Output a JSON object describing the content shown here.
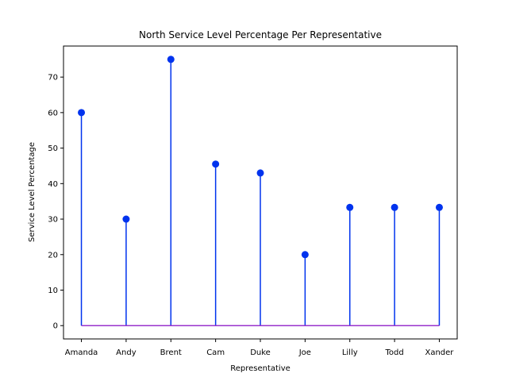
{
  "chart_data": {
    "type": "stem",
    "title": "North Service Level Percentage Per Representative",
    "xlabel": "Representative",
    "ylabel": "Service Level Percentage",
    "categories": [
      "Amanda",
      "Andy",
      "Brent",
      "Cam",
      "Duke",
      "Joe",
      "Lilly",
      "Todd",
      "Xander"
    ],
    "values": [
      60,
      30,
      75,
      45.5,
      43,
      20,
      33.3,
      33.3,
      33.3
    ],
    "ylim": [
      -3.75,
      78.75
    ],
    "yticks": [
      0,
      10,
      20,
      30,
      40,
      50,
      60,
      70
    ],
    "grid": false,
    "colors": {
      "stem": "#0033ee",
      "marker": "#0033ee",
      "baseline": "#9933cc"
    }
  }
}
